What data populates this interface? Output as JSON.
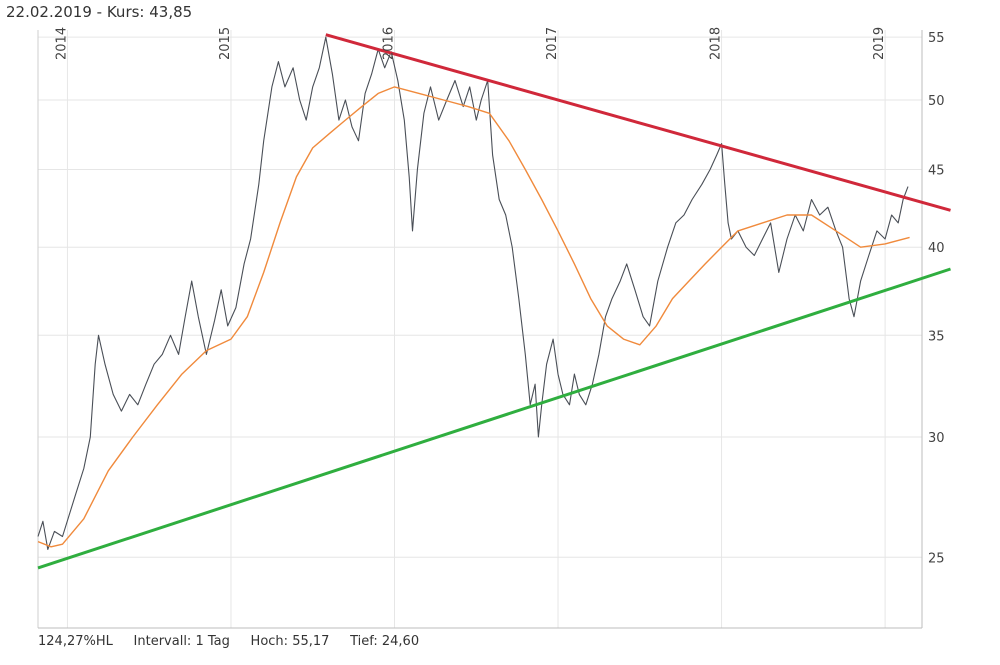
{
  "header": {
    "date": "22.02.2019",
    "separator": " - ",
    "kurs_label": "Kurs:",
    "kurs_value": "43,85"
  },
  "footer": {
    "hl": "124,27%HL",
    "intervall_label": "Intervall:",
    "intervall_value": "1 Tag",
    "hoch_label": "Hoch:",
    "hoch_value": "55,17",
    "tief_label": "Tief:",
    "tief_value": "24,60"
  },
  "colors": {
    "price": "#4a4f57",
    "moving_average": "#f08a3c",
    "resistance": "#d0283a",
    "support": "#2fae3f",
    "grid": "#e6e6e6"
  },
  "chart_data": {
    "type": "line",
    "scale": "log",
    "ylim": [
      22,
      58
    ],
    "xlim": [
      2013.8,
      2019.4
    ],
    "y_ticks": [
      {
        "value": 25,
        "label": "25"
      },
      {
        "value": 30,
        "label": "30"
      },
      {
        "value": 35,
        "label": "35"
      },
      {
        "value": 40,
        "label": "40"
      },
      {
        "value": 45,
        "label": "45"
      },
      {
        "value": 50,
        "label": "50"
      },
      {
        "value": 55,
        "label": "55"
      }
    ],
    "x_ticks": [
      {
        "value": 2014.0,
        "label": "2014"
      },
      {
        "value": 2015.0,
        "label": "2015"
      },
      {
        "value": 2016.0,
        "label": "2016"
      },
      {
        "value": 2017.0,
        "label": "2017"
      },
      {
        "value": 2018.0,
        "label": "2018"
      },
      {
        "value": 2019.0,
        "label": "2019"
      }
    ],
    "series": [
      {
        "key": "price",
        "points": [
          [
            2013.82,
            25.8
          ],
          [
            2013.85,
            26.4
          ],
          [
            2013.88,
            25.3
          ],
          [
            2013.92,
            26.0
          ],
          [
            2013.97,
            25.8
          ],
          [
            2014.05,
            27.5
          ],
          [
            2014.1,
            28.6
          ],
          [
            2014.14,
            30.0
          ],
          [
            2014.17,
            33.5
          ],
          [
            2014.19,
            35.0
          ],
          [
            2014.23,
            33.5
          ],
          [
            2014.28,
            32.0
          ],
          [
            2014.33,
            31.2
          ],
          [
            2014.38,
            32.0
          ],
          [
            2014.43,
            31.5
          ],
          [
            2014.48,
            32.5
          ],
          [
            2014.53,
            33.5
          ],
          [
            2014.58,
            34.0
          ],
          [
            2014.63,
            35.0
          ],
          [
            2014.68,
            34.0
          ],
          [
            2014.72,
            36.0
          ],
          [
            2014.76,
            38.0
          ],
          [
            2014.8,
            36.0
          ],
          [
            2014.85,
            34.0
          ],
          [
            2014.9,
            35.8
          ],
          [
            2014.94,
            37.5
          ],
          [
            2014.98,
            35.5
          ],
          [
            2015.03,
            36.5
          ],
          [
            2015.08,
            39.0
          ],
          [
            2015.12,
            40.5
          ],
          [
            2015.17,
            44.0
          ],
          [
            2015.2,
            47.0
          ],
          [
            2015.25,
            51.0
          ],
          [
            2015.29,
            53.0
          ],
          [
            2015.33,
            51.0
          ],
          [
            2015.38,
            52.5
          ],
          [
            2015.42,
            50.0
          ],
          [
            2015.46,
            48.5
          ],
          [
            2015.5,
            51.0
          ],
          [
            2015.54,
            52.5
          ],
          [
            2015.58,
            55.0
          ],
          [
            2015.62,
            52.0
          ],
          [
            2015.66,
            48.5
          ],
          [
            2015.7,
            50.0
          ],
          [
            2015.74,
            48.0
          ],
          [
            2015.78,
            47.0
          ],
          [
            2015.82,
            50.5
          ],
          [
            2015.86,
            52.0
          ],
          [
            2015.9,
            54.0
          ],
          [
            2015.94,
            52.5
          ],
          [
            2015.98,
            53.8
          ],
          [
            2016.02,
            51.5
          ],
          [
            2016.06,
            48.5
          ],
          [
            2016.09,
            44.5
          ],
          [
            2016.11,
            41.0
          ],
          [
            2016.14,
            45.0
          ],
          [
            2016.18,
            49.0
          ],
          [
            2016.22,
            51.0
          ],
          [
            2016.27,
            48.5
          ],
          [
            2016.32,
            50.0
          ],
          [
            2016.37,
            51.5
          ],
          [
            2016.42,
            49.5
          ],
          [
            2016.46,
            51.0
          ],
          [
            2016.5,
            48.5
          ],
          [
            2016.53,
            50.0
          ],
          [
            2016.57,
            51.5
          ],
          [
            2016.6,
            46.0
          ],
          [
            2016.64,
            43.0
          ],
          [
            2016.68,
            42.0
          ],
          [
            2016.72,
            40.0
          ],
          [
            2016.76,
            37.0
          ],
          [
            2016.8,
            34.0
          ],
          [
            2016.83,
            31.5
          ],
          [
            2016.86,
            32.5
          ],
          [
            2016.88,
            30.0
          ],
          [
            2016.9,
            31.5
          ],
          [
            2016.93,
            33.5
          ],
          [
            2016.97,
            34.8
          ],
          [
            2017.0,
            33.0
          ],
          [
            2017.03,
            32.0
          ],
          [
            2017.07,
            31.5
          ],
          [
            2017.1,
            33.0
          ],
          [
            2017.13,
            32.0
          ],
          [
            2017.17,
            31.5
          ],
          [
            2017.21,
            32.5
          ],
          [
            2017.25,
            34.0
          ],
          [
            2017.29,
            36.0
          ],
          [
            2017.33,
            37.0
          ],
          [
            2017.38,
            38.0
          ],
          [
            2017.42,
            39.0
          ],
          [
            2017.47,
            37.5
          ],
          [
            2017.52,
            36.0
          ],
          [
            2017.56,
            35.5
          ],
          [
            2017.61,
            38.0
          ],
          [
            2017.67,
            40.0
          ],
          [
            2017.72,
            41.5
          ],
          [
            2017.77,
            42.0
          ],
          [
            2017.82,
            43.0
          ],
          [
            2017.88,
            44.0
          ],
          [
            2017.93,
            45.0
          ],
          [
            2017.97,
            46.0
          ],
          [
            2018.0,
            46.8
          ],
          [
            2018.02,
            44.0
          ],
          [
            2018.04,
            41.5
          ],
          [
            2018.06,
            40.5
          ],
          [
            2018.1,
            41.0
          ],
          [
            2018.15,
            40.0
          ],
          [
            2018.2,
            39.5
          ],
          [
            2018.25,
            40.5
          ],
          [
            2018.3,
            41.5
          ],
          [
            2018.35,
            38.5
          ],
          [
            2018.4,
            40.5
          ],
          [
            2018.45,
            42.0
          ],
          [
            2018.5,
            41.0
          ],
          [
            2018.55,
            43.0
          ],
          [
            2018.6,
            42.0
          ],
          [
            2018.65,
            42.5
          ],
          [
            2018.7,
            41.0
          ],
          [
            2018.74,
            40.0
          ],
          [
            2018.78,
            37.0
          ],
          [
            2018.81,
            36.0
          ],
          [
            2018.85,
            38.0
          ],
          [
            2018.9,
            39.5
          ],
          [
            2018.95,
            41.0
          ],
          [
            2019.0,
            40.5
          ],
          [
            2019.04,
            42.0
          ],
          [
            2019.08,
            41.5
          ],
          [
            2019.11,
            43.0
          ],
          [
            2019.14,
            43.85
          ]
        ]
      },
      {
        "key": "moving_average",
        "points": [
          [
            2013.82,
            25.6
          ],
          [
            2013.9,
            25.4
          ],
          [
            2013.97,
            25.5
          ],
          [
            2014.1,
            26.5
          ],
          [
            2014.25,
            28.5
          ],
          [
            2014.4,
            30.0
          ],
          [
            2014.55,
            31.5
          ],
          [
            2014.7,
            33.0
          ],
          [
            2014.85,
            34.2
          ],
          [
            2015.0,
            34.8
          ],
          [
            2015.1,
            36.0
          ],
          [
            2015.2,
            38.5
          ],
          [
            2015.3,
            41.5
          ],
          [
            2015.4,
            44.5
          ],
          [
            2015.5,
            46.5
          ],
          [
            2015.6,
            47.5
          ],
          [
            2015.7,
            48.5
          ],
          [
            2015.8,
            49.5
          ],
          [
            2015.9,
            50.5
          ],
          [
            2016.0,
            51.0
          ],
          [
            2016.15,
            50.5
          ],
          [
            2016.3,
            50.0
          ],
          [
            2016.45,
            49.5
          ],
          [
            2016.58,
            49.0
          ],
          [
            2016.7,
            47.0
          ],
          [
            2016.8,
            45.0
          ],
          [
            2016.9,
            43.0
          ],
          [
            2017.0,
            41.0
          ],
          [
            2017.1,
            39.0
          ],
          [
            2017.2,
            37.0
          ],
          [
            2017.3,
            35.5
          ],
          [
            2017.4,
            34.8
          ],
          [
            2017.5,
            34.5
          ],
          [
            2017.6,
            35.5
          ],
          [
            2017.7,
            37.0
          ],
          [
            2017.8,
            38.0
          ],
          [
            2017.9,
            39.0
          ],
          [
            2018.0,
            40.0
          ],
          [
            2018.1,
            41.0
          ],
          [
            2018.25,
            41.5
          ],
          [
            2018.4,
            42.0
          ],
          [
            2018.55,
            42.0
          ],
          [
            2018.7,
            41.0
          ],
          [
            2018.85,
            40.0
          ],
          [
            2019.0,
            40.2
          ],
          [
            2019.15,
            40.6
          ]
        ]
      },
      {
        "key": "resistance",
        "points": [
          [
            2015.58,
            55.2
          ],
          [
            2019.4,
            42.3
          ]
        ]
      },
      {
        "key": "support",
        "points": [
          [
            2013.82,
            24.6
          ],
          [
            2019.4,
            38.7
          ]
        ]
      }
    ]
  }
}
